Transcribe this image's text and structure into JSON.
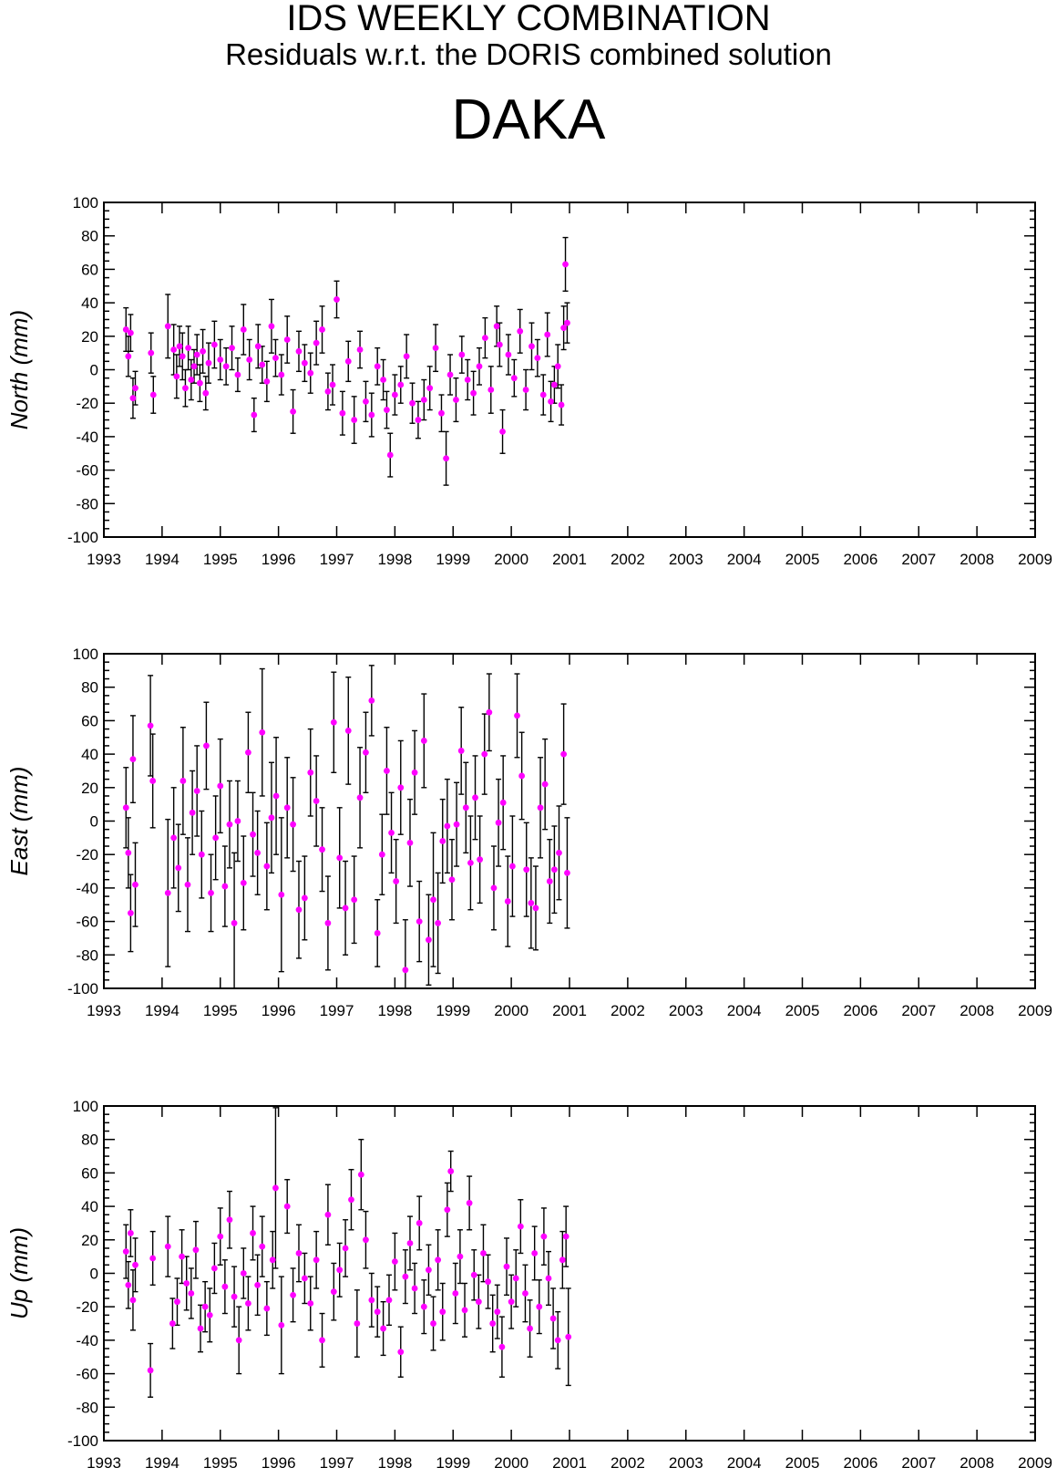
{
  "header": {
    "title": "IDS WEEKLY COMBINATION",
    "subtitle": "Residuals w.r.t. the DORIS combined solution",
    "station": "DAKA"
  },
  "colors": {
    "point": "#ff00ff",
    "errorbar": "#000000",
    "axis": "#000000",
    "background": "#ffffff"
  },
  "chart_data": [
    {
      "type": "scatter",
      "ylabel": "North (mm)",
      "ylim": [
        -100,
        100
      ],
      "xlim": [
        1993,
        2009
      ],
      "x_ticks": [
        "1993",
        "1994",
        "1995",
        "1996",
        "1997",
        "1998",
        "1999",
        "2000",
        "2001",
        "2002",
        "2003",
        "2004",
        "2005",
        "2006",
        "2007",
        "2008",
        "2009"
      ],
      "y_ticks": [
        "100",
        "80",
        "60",
        "40",
        "20",
        "0",
        "-20",
        "-40",
        "-60",
        "-80",
        "-100"
      ],
      "grid": false,
      "series": [
        {
          "x": [
            1993.38,
            1993.42,
            1993.46,
            1993.5,
            1993.54,
            1993.81,
            1993.85,
            1994.1,
            1994.2,
            1994.25,
            1994.3,
            1994.35,
            1994.4,
            1994.45,
            1994.5,
            1994.55,
            1994.6,
            1994.65,
            1994.7,
            1994.75,
            1994.8,
            1994.9,
            1995.0,
            1995.1,
            1995.2,
            1995.3,
            1995.4,
            1995.5,
            1995.58,
            1995.65,
            1995.72,
            1995.8,
            1995.88,
            1995.95,
            1996.05,
            1996.15,
            1996.25,
            1996.35,
            1996.45,
            1996.55,
            1996.65,
            1996.75,
            1996.85,
            1996.93,
            1997.0,
            1997.1,
            1997.2,
            1997.3,
            1997.4,
            1997.5,
            1997.6,
            1997.7,
            1997.8,
            1997.86,
            1997.92,
            1998.0,
            1998.1,
            1998.2,
            1998.3,
            1998.4,
            1998.5,
            1998.6,
            1998.7,
            1998.8,
            1998.88,
            1998.95,
            1999.05,
            1999.15,
            1999.25,
            1999.35,
            1999.45,
            1999.55,
            1999.65,
            1999.75,
            1999.8,
            1999.85,
            1999.95,
            2000.05,
            2000.15,
            2000.25,
            2000.35,
            2000.45,
            2000.55,
            2000.62,
            2000.68,
            2000.74,
            2000.8,
            2000.86,
            2000.9,
            2000.93,
            2000.96
          ],
          "y": [
            24,
            8,
            22,
            -17,
            -11,
            10,
            -15,
            26,
            12,
            -4,
            14,
            8,
            -11,
            13,
            -6,
            2,
            9,
            -8,
            11,
            -14,
            4,
            15,
            6,
            2,
            13,
            -3,
            24,
            6,
            -27,
            14,
            3,
            -7,
            26,
            7,
            -3,
            18,
            -25,
            11,
            4,
            -2,
            16,
            24,
            -13,
            -9,
            42,
            -26,
            5,
            -30,
            12,
            -19,
            -27,
            2,
            -6,
            -24,
            -51,
            -15,
            -9,
            8,
            -20,
            -30,
            -18,
            -11,
            13,
            -26,
            -53,
            -3,
            -18,
            9,
            -6,
            -14,
            2,
            19,
            -12,
            26,
            15,
            -37,
            9,
            -5,
            23,
            -12,
            14,
            7,
            -15,
            21,
            -19,
            -9,
            2,
            -21,
            25,
            63,
            28
          ],
          "err": [
            13,
            12,
            11,
            12,
            10,
            12,
            11,
            19,
            15,
            13,
            12,
            14,
            11,
            13,
            12,
            10,
            12,
            11,
            13,
            10,
            12,
            14,
            12,
            11,
            13,
            10,
            15,
            12,
            10,
            13,
            11,
            12,
            16,
            11,
            12,
            14,
            13,
            12,
            11,
            12,
            13,
            14,
            11,
            12,
            11,
            13,
            12,
            14,
            11,
            12,
            13,
            11,
            12,
            11,
            13,
            12,
            11,
            13,
            12,
            11,
            12,
            13,
            14,
            11,
            16,
            12,
            13,
            11,
            12,
            13,
            11,
            12,
            14,
            12,
            13,
            13,
            12,
            11,
            13,
            12,
            14,
            11,
            12,
            13,
            12,
            11,
            13,
            12,
            13,
            16,
            12
          ]
        }
      ]
    },
    {
      "type": "scatter",
      "ylabel": "East (mm)",
      "ylim": [
        -100,
        100
      ],
      "xlim": [
        1993,
        2009
      ],
      "x_ticks": [
        "1993",
        "1994",
        "1995",
        "1996",
        "1997",
        "1998",
        "1999",
        "2000",
        "2001",
        "2002",
        "2003",
        "2004",
        "2005",
        "2006",
        "2007",
        "2008",
        "2009"
      ],
      "y_ticks": [
        "100",
        "80",
        "60",
        "40",
        "20",
        "0",
        "-20",
        "-40",
        "-60",
        "-80",
        "-100"
      ],
      "grid": false,
      "series": [
        {
          "x": [
            1993.38,
            1993.42,
            1993.46,
            1993.5,
            1993.54,
            1993.8,
            1993.84,
            1994.1,
            1994.2,
            1994.28,
            1994.36,
            1994.44,
            1994.52,
            1994.6,
            1994.68,
            1994.76,
            1994.84,
            1994.92,
            1995.0,
            1995.08,
            1995.16,
            1995.24,
            1995.3,
            1995.4,
            1995.48,
            1995.56,
            1995.64,
            1995.72,
            1995.8,
            1995.88,
            1995.96,
            1996.05,
            1996.15,
            1996.25,
            1996.35,
            1996.45,
            1996.55,
            1996.65,
            1996.75,
            1996.85,
            1996.95,
            1997.05,
            1997.15,
            1997.2,
            1997.3,
            1997.4,
            1997.5,
            1997.6,
            1997.7,
            1997.78,
            1997.86,
            1997.94,
            1998.02,
            1998.1,
            1998.18,
            1998.26,
            1998.34,
            1998.42,
            1998.5,
            1998.58,
            1998.66,
            1998.74,
            1998.82,
            1998.9,
            1998.98,
            1999.06,
            1999.14,
            1999.22,
            1999.3,
            1999.38,
            1999.46,
            1999.54,
            1999.62,
            1999.7,
            1999.78,
            1999.86,
            1999.94,
            2000.02,
            2000.1,
            2000.18,
            2000.26,
            2000.34,
            2000.42,
            2000.5,
            2000.58,
            2000.66,
            2000.74,
            2000.82,
            2000.9,
            2000.96
          ],
          "y": [
            8,
            -19,
            -55,
            37,
            -38,
            57,
            24,
            -43,
            -10,
            -28,
            24,
            -38,
            5,
            18,
            -20,
            45,
            -43,
            -10,
            21,
            -39,
            -2,
            -61,
            0,
            -37,
            41,
            -8,
            -19,
            53,
            -27,
            2,
            15,
            -44,
            8,
            -2,
            -53,
            -46,
            29,
            12,
            -17,
            -61,
            59,
            -22,
            -52,
            54,
            -47,
            14,
            41,
            72,
            -67,
            -20,
            30,
            -7,
            -36,
            20,
            -89,
            -13,
            29,
            -60,
            48,
            -71,
            -47,
            -61,
            -12,
            -3,
            -35,
            -2,
            42,
            8,
            -25,
            14,
            -23,
            40,
            65,
            -40,
            -1,
            11,
            -48,
            -27,
            63,
            27,
            -29,
            -49,
            -52,
            8,
            22,
            -36,
            -29,
            -19,
            40,
            -31
          ],
          "err": [
            24,
            21,
            23,
            26,
            25,
            30,
            28,
            44,
            30,
            26,
            32,
            28,
            25,
            27,
            26,
            26,
            23,
            25,
            28,
            24,
            26,
            42,
            24,
            28,
            24,
            25,
            25,
            38,
            26,
            33,
            35,
            46,
            30,
            28,
            29,
            25,
            26,
            27,
            25,
            28,
            30,
            30,
            28,
            32,
            26,
            30,
            24,
            21,
            20,
            24,
            26,
            24,
            25,
            28,
            30,
            26,
            25,
            24,
            28,
            27,
            40,
            30,
            25,
            28,
            24,
            25,
            26,
            27,
            28,
            25,
            26,
            24,
            23,
            25,
            26,
            28,
            27,
            30,
            25,
            26,
            28,
            27,
            25,
            30,
            27,
            25,
            26,
            28,
            30,
            33
          ]
        }
      ]
    },
    {
      "type": "scatter",
      "ylabel": "Up (mm)",
      "ylim": [
        -100,
        100
      ],
      "xlim": [
        1993,
        2009
      ],
      "x_ticks": [
        "1993",
        "1994",
        "1995",
        "1996",
        "1997",
        "1998",
        "1999",
        "2000",
        "2001",
        "2002",
        "2003",
        "2004",
        "2005",
        "2006",
        "2007",
        "2008",
        "2009"
      ],
      "y_ticks": [
        "100",
        "80",
        "60",
        "40",
        "20",
        "0",
        "-20",
        "-40",
        "-60",
        "-80",
        "-100"
      ],
      "grid": false,
      "series": [
        {
          "x": [
            1993.38,
            1993.42,
            1993.46,
            1993.5,
            1993.54,
            1993.8,
            1993.84,
            1994.1,
            1994.18,
            1994.26,
            1994.34,
            1994.42,
            1994.5,
            1994.58,
            1994.66,
            1994.74,
            1994.82,
            1994.9,
            1995.0,
            1995.08,
            1995.16,
            1995.24,
            1995.32,
            1995.4,
            1995.48,
            1995.56,
            1995.64,
            1995.72,
            1995.8,
            1995.9,
            1995.95,
            1996.05,
            1996.15,
            1996.25,
            1996.35,
            1996.45,
            1996.55,
            1996.65,
            1996.75,
            1996.85,
            1996.95,
            1997.05,
            1997.15,
            1997.25,
            1997.35,
            1997.42,
            1997.5,
            1997.6,
            1997.7,
            1997.8,
            1997.9,
            1998.0,
            1998.1,
            1998.18,
            1998.26,
            1998.34,
            1998.42,
            1998.5,
            1998.58,
            1998.66,
            1998.74,
            1998.82,
            1998.9,
            1998.96,
            1999.04,
            1999.12,
            1999.2,
            1999.28,
            1999.36,
            1999.44,
            1999.52,
            1999.6,
            1999.68,
            1999.76,
            1999.84,
            1999.92,
            2000.0,
            2000.08,
            2000.16,
            2000.24,
            2000.32,
            2000.4,
            2000.48,
            2000.56,
            2000.64,
            2000.72,
            2000.8,
            2000.88,
            2000.94,
            2000.98
          ],
          "y": [
            13,
            -7,
            24,
            -16,
            5,
            -58,
            9,
            16,
            -30,
            -17,
            10,
            -6,
            -12,
            14,
            -33,
            -20,
            -25,
            3,
            22,
            -8,
            32,
            -14,
            -40,
            0,
            -18,
            24,
            -7,
            16,
            -21,
            8,
            51,
            -31,
            40,
            -13,
            12,
            -3,
            -18,
            8,
            -40,
            35,
            -11,
            2,
            15,
            44,
            -30,
            59,
            20,
            -16,
            -23,
            -33,
            -16,
            7,
            -47,
            -2,
            18,
            -9,
            30,
            -20,
            2,
            -30,
            8,
            -23,
            38,
            61,
            -12,
            10,
            -22,
            42,
            -1,
            -17,
            12,
            -5,
            -30,
            -23,
            -44,
            4,
            -17,
            -3,
            28,
            -12,
            -33,
            12,
            -20,
            22,
            -3,
            -27,
            -40,
            8,
            22,
            -38
          ],
          "err": [
            16,
            14,
            14,
            18,
            16,
            16,
            16,
            18,
            15,
            14,
            16,
            16,
            15,
            17,
            14,
            15,
            16,
            15,
            17,
            16,
            17,
            18,
            20,
            15,
            16,
            16,
            18,
            18,
            16,
            17,
            48,
            29,
            16,
            16,
            17,
            15,
            16,
            17,
            16,
            18,
            17,
            16,
            17,
            18,
            20,
            21,
            17,
            16,
            15,
            16,
            15,
            17,
            15,
            16,
            16,
            15,
            16,
            16,
            15,
            16,
            18,
            17,
            16,
            12,
            18,
            16,
            16,
            16,
            15,
            16,
            17,
            16,
            17,
            16,
            18,
            17,
            16,
            17,
            16,
            17,
            17,
            16,
            16,
            17,
            16,
            18,
            17,
            17,
            18,
            29
          ]
        }
      ]
    }
  ]
}
